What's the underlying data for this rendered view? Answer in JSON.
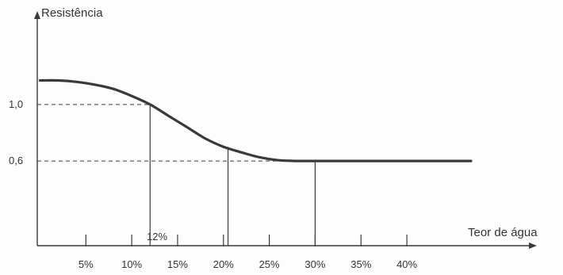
{
  "chart_data": {
    "type": "line",
    "ylabel": "Resistência",
    "xlabel": "Teor de água",
    "x_tick_labels": [
      "5%",
      "10%",
      "15%",
      "20%",
      "25%",
      "30%",
      "35%",
      "40%"
    ],
    "x_ticks": [
      5,
      10,
      15,
      20,
      25,
      30,
      35,
      40
    ],
    "y_tick_labels": [
      "1,0",
      "0,6"
    ],
    "y_ticks": [
      1.0,
      0.6
    ],
    "annotation": "12%",
    "guide_points": [
      {
        "x": 12,
        "y": 1.0,
        "hline": true
      },
      {
        "x": 20.5,
        "y": 0.7,
        "hline": false
      },
      {
        "x": 30,
        "y": 0.6,
        "hline": true
      }
    ],
    "series": [
      {
        "x": [
          0,
          2,
          4,
          6,
          8,
          10,
          12,
          14,
          16,
          18,
          20,
          22,
          24,
          26,
          28,
          30,
          35,
          40,
          47
        ],
        "y": [
          1.17,
          1.17,
          1.16,
          1.14,
          1.11,
          1.06,
          1.0,
          0.92,
          0.84,
          0.76,
          0.7,
          0.66,
          0.625,
          0.605,
          0.6,
          0.6,
          0.6,
          0.6,
          0.6
        ]
      }
    ],
    "xlim": [
      -0.3,
      54
    ],
    "ylim": [
      0,
      1.65
    ],
    "grid": false,
    "color": "#3a3a3a"
  }
}
